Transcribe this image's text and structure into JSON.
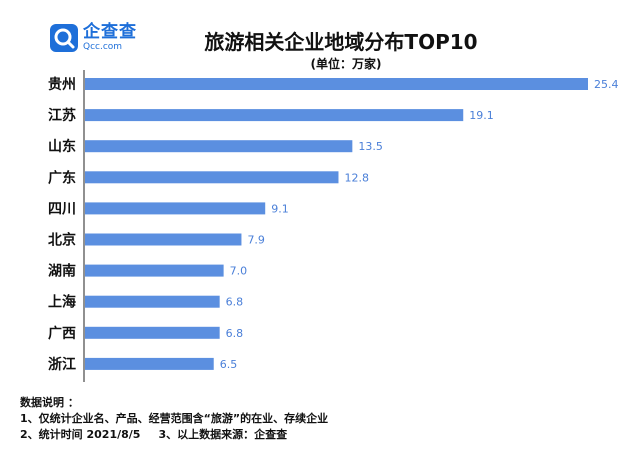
{
  "logo": {
    "cn": "企查查",
    "en": "Qcc.com"
  },
  "chart_data": {
    "type": "bar",
    "orientation": "horizontal",
    "title": "旅游相关企业地域分布TOP10",
    "unit_label": "(单位：万家)",
    "categories": [
      "贵州",
      "江苏",
      "山东",
      "广东",
      "四川",
      "北京",
      "湖南",
      "上海",
      "广西",
      "浙江"
    ],
    "values": [
      25.4,
      19.1,
      13.5,
      12.8,
      9.1,
      7.9,
      7.0,
      6.8,
      6.8,
      6.5
    ],
    "value_labels": [
      "25.4",
      "19.1",
      "13.5",
      "12.8",
      "9.1",
      "7.9",
      "7.0",
      "6.8",
      "6.8",
      "6.5"
    ],
    "xlim": [
      0,
      25.4
    ],
    "grid": false,
    "bar_color": "#5b8fe0",
    "label_color": "#4a7fd8"
  },
  "notes": {
    "heading": "数据说明 ：",
    "line1": "1、仅统计企业名、产品、经营范围含“旅游”的在业、存续企业",
    "line2a": "2、统计时间  2021/8/5",
    "line2b": "3、以上数据来源：企查查"
  }
}
